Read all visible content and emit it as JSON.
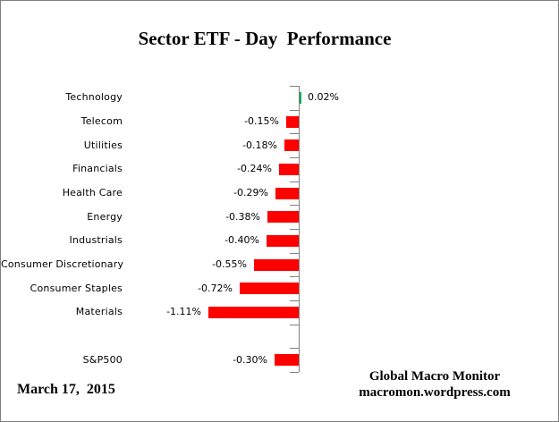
{
  "frame": {
    "background": "#FFFFFF",
    "border_color": "#808080"
  },
  "footer": {
    "date": "March 17,  2015",
    "attribution_line1": "Global Macro Monitor",
    "attribution_line2": "macromon.wordpress.com"
  },
  "chart_data": {
    "type": "bar",
    "orientation": "horizontal",
    "title": "Sector ETF - Day  Performance",
    "categories": [
      "Technology",
      "Telecom",
      "Utilities",
      "Financials",
      "Health Care",
      "Energy",
      "Industrials",
      "Consumer Discretionary",
      "Consumer Staples",
      "Materials",
      "",
      "S&P500"
    ],
    "values": [
      0.02,
      -0.15,
      -0.18,
      -0.24,
      -0.29,
      -0.38,
      -0.4,
      -0.55,
      -0.72,
      -1.11,
      null,
      -0.3
    ],
    "value_labels": [
      "0.02%",
      "-0.15%",
      "-0.18%",
      "-0.24%",
      "-0.29%",
      "-0.38%",
      "-0.40%",
      "-0.55%",
      "-0.72%",
      "-1.11%",
      "",
      "-0.30%"
    ],
    "xlabel": "",
    "ylabel": "",
    "xlim": [
      -1.2,
      0.25
    ],
    "grid": false,
    "legend": false,
    "value_labels_shown": true,
    "colors": {
      "positive": "#00B050",
      "negative": "#FF0000",
      "axis": "#808080",
      "text": "#000000"
    }
  }
}
